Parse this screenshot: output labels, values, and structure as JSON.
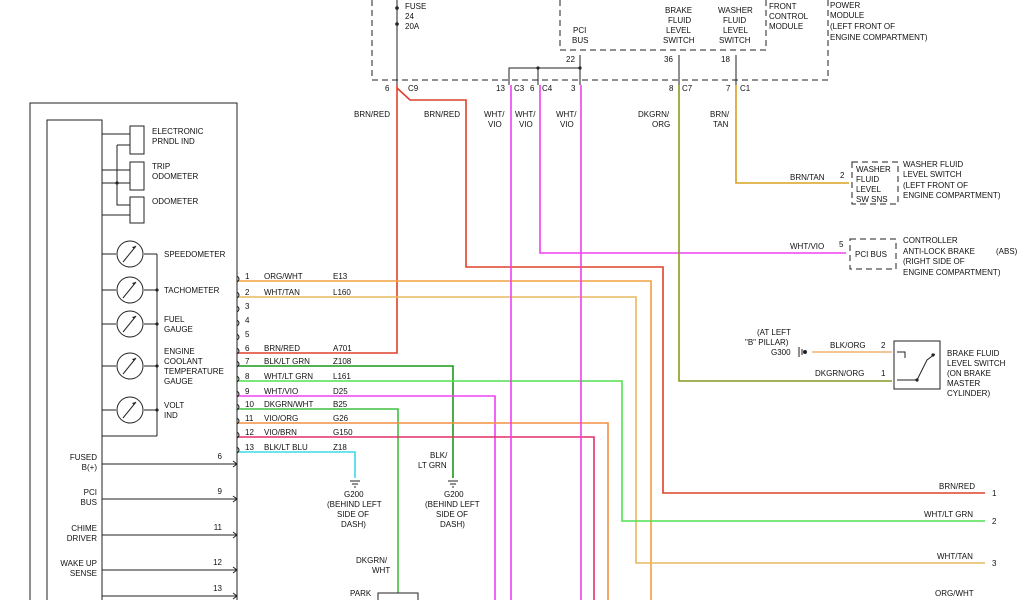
{
  "colors": {
    "brn_red": "#e0402a",
    "red": "#e03030",
    "org_wht": "#f0a040",
    "wht_tan": "#e8b860",
    "blk_ltgrn": "#1a9a1a",
    "wht_ltgrn": "#50e050",
    "magenta": "#f040f0",
    "dkgrn_wht": "#40c040",
    "vio_org": "#f09040",
    "vio_brn": "#e0306a",
    "blk_ltblu": "#40d8e8",
    "dkgrn_org": "#8a9a20",
    "brn_tan": "#d8a020",
    "blk_org": "#f0b070"
  },
  "fcm": {
    "fuse": [
      "FUSE",
      "24",
      "20A"
    ],
    "pci_bus": [
      "PCI",
      "BUS"
    ],
    "brake_switch": [
      "BRAKE",
      "FLUID",
      "LEVEL",
      "SWITCH"
    ],
    "washer_switch": [
      "WASHER",
      "FLUID",
      "LEVEL",
      "SWITCH"
    ],
    "module": [
      "FRONT",
      "CONTROL",
      "MODULE"
    ],
    "pdm": [
      "POWER",
      "MODULE",
      "(LEFT FRONT OF",
      "ENGINE COMPARTMENT)"
    ],
    "pins": {
      "p22": "22",
      "p36": "36",
      "p18": "18",
      "c9_pin": "6",
      "c9": "C9",
      "c3_pin": "13",
      "c3": "C3",
      "c4_pin": "6",
      "c4": "C4",
      "p3": "3",
      "c7_pin": "8",
      "c7": "C7",
      "c1_pin": "7",
      "c1": "C1"
    }
  },
  "wire_labels_top": {
    "brn_red_1": "BRN/RED",
    "brn_red_2": "BRN/RED",
    "wht_vio_1": [
      "WHT/",
      "VIO"
    ],
    "wht_vio_2": [
      "WHT/",
      "VIO"
    ],
    "wht_vio_3": [
      "WHT/",
      "VIO"
    ],
    "dkgrn_org": [
      "DKGRN/",
      "ORG"
    ],
    "brn_tan": [
      "BRN/",
      "TAN"
    ]
  },
  "washer": {
    "wire": "BRN/TAN",
    "pin": "2",
    "box": [
      "WASHER",
      "FLUID",
      "LEVEL",
      "SW SNS"
    ],
    "desc": [
      "WASHER FLUID",
      "LEVEL SWITCH",
      "(LEFT FRONT OF",
      "ENGINE COMPARTMENT)"
    ]
  },
  "abs": {
    "wire": "WHT/VIO",
    "pin": "5",
    "box": "PCI BUS",
    "desc": [
      "CONTROLLER",
      "ANTI-LOCK BRAKE",
      "(RIGHT SIDE OF",
      "ENGINE COMPARTMENT)"
    ],
    "abbr": "(ABS)"
  },
  "brake_fluid": {
    "ground": [
      "(AT LEFT",
      "\"B\" PILLAR)",
      "G300"
    ],
    "wire2": "BLK/ORG",
    "pin2": "2",
    "wire1": "DKGRN/ORG",
    "pin1": "1",
    "desc": [
      "BRAKE FLUID",
      "LEVEL SWITCH",
      "(ON BRAKE",
      "MASTER",
      "CYLINDER)"
    ]
  },
  "cluster": {
    "displays": [
      [
        "ELECTRONIC",
        "PRNDL IND"
      ],
      [
        "TRIP",
        "ODOMETER"
      ],
      [
        "ODOMETER"
      ]
    ],
    "gauges": [
      [
        "SPEEDOMETER"
      ],
      [
        "TACHOMETER"
      ],
      [
        "FUEL",
        "GAUGE"
      ],
      [
        "ENGINE",
        "COOLANT",
        "TEMPERATURE",
        "GAUGE"
      ],
      [
        "VOLT",
        "IND"
      ]
    ],
    "inputs": [
      {
        "label": [
          "FUSED",
          "B(+)"
        ],
        "pin": "6"
      },
      {
        "label": [
          "PCI",
          "BUS"
        ],
        "pin": "9"
      },
      {
        "label": [
          "CHIME",
          "DRIVER"
        ],
        "pin": "11"
      },
      {
        "label": [
          "WAKE UP",
          "SENSE"
        ],
        "pin": "12"
      },
      {
        "label": [
          ""
        ],
        "pin": "13"
      }
    ]
  },
  "connector_rows": [
    {
      "pin": "1",
      "color": "ORG/WHT",
      "circuit": "E13"
    },
    {
      "pin": "2",
      "color": "WHT/TAN",
      "circuit": "L160"
    },
    {
      "pin": "3",
      "color": "",
      "circuit": ""
    },
    {
      "pin": "4",
      "color": "",
      "circuit": ""
    },
    {
      "pin": "5",
      "color": "",
      "circuit": ""
    },
    {
      "pin": "6",
      "color": "BRN/RED",
      "circuit": "A701"
    },
    {
      "pin": "7",
      "color": "BLK/LT GRN",
      "circuit": "Z108"
    },
    {
      "pin": "8",
      "color": "WHT/LT GRN",
      "circuit": "L161"
    },
    {
      "pin": "9",
      "color": "WHT/VIO",
      "circuit": "D25"
    },
    {
      "pin": "10",
      "color": "DKGRN/WHT",
      "circuit": "B25"
    },
    {
      "pin": "11",
      "color": "VIO/ORG",
      "circuit": "G26"
    },
    {
      "pin": "12",
      "color": "VIO/BRN",
      "circuit": "G150"
    },
    {
      "pin": "13",
      "color": "BLK/LT BLU",
      "circuit": "Z18"
    }
  ],
  "grounds": [
    {
      "id": "G200",
      "desc": [
        "(BEHIND LEFT",
        "SIDE OF",
        "DASH)"
      ]
    },
    {
      "id": "G200",
      "desc": [
        "(BEHIND LEFT",
        "SIDE OF",
        "DASH)"
      ],
      "wire": [
        "BLK/",
        "LT GRN"
      ]
    }
  ],
  "bottom": {
    "dkgrn_wht": [
      "DKGRN/",
      "WHT"
    ],
    "park": "PARK"
  },
  "right_outputs": [
    {
      "wire": "BRN/RED",
      "pin": "1"
    },
    {
      "wire": "WHT/LT GRN",
      "pin": "2"
    },
    {
      "wire": "WHT/TAN",
      "pin": "3"
    },
    {
      "wire": "ORG/WHT",
      "pin": ""
    }
  ]
}
